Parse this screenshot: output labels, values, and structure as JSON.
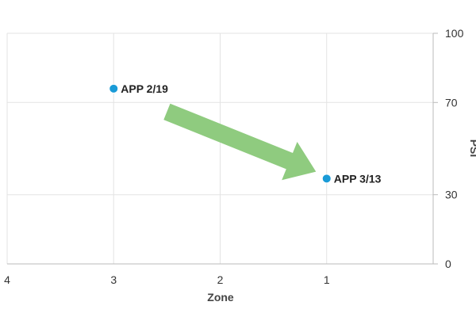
{
  "chart_data": {
    "type": "scatter",
    "title": "",
    "xlabel": "Zone",
    "ylabel": "PSI",
    "xlim": [
      4,
      0
    ],
    "ylim": [
      0,
      100
    ],
    "x_ticks": [
      4,
      3,
      2,
      1
    ],
    "y_ticks": [
      0,
      30,
      70,
      100
    ],
    "grid": true,
    "y_axis_side": "right",
    "series": [
      {
        "points": [
          {
            "x": 3,
            "y": 76,
            "label": "APP 2/19"
          },
          {
            "x": 1,
            "y": 37,
            "label": "APP 3/13"
          }
        ]
      }
    ],
    "annotation": {
      "shape": "arrow",
      "from": {
        "x": 2.5,
        "y": 66
      },
      "to": {
        "x": 1.1,
        "y": 40
      }
    },
    "colors": {
      "point": "#1a9bd7",
      "arrow": "#8fcb7f",
      "grid": "#e3e3e3",
      "axis": "#bbbbbb"
    }
  }
}
